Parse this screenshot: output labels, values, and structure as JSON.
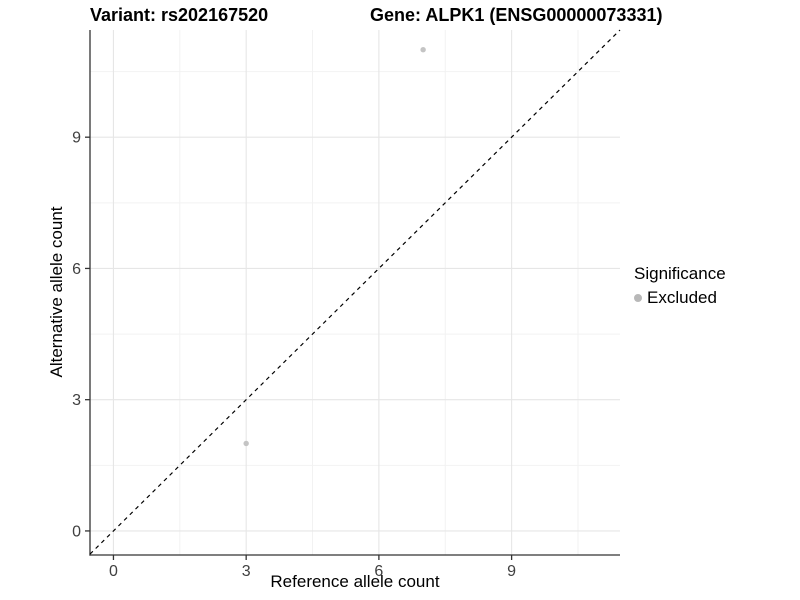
{
  "chart_data": {
    "type": "scatter",
    "title_left": "Variant: rs202167520",
    "title_right": "Gene: ALPK1 (ENSG00000073331)",
    "xlabel": "Reference allele count",
    "ylabel": "Alternative allele count",
    "x_ticks": [
      0,
      3,
      6,
      9
    ],
    "y_ticks": [
      0,
      3,
      6,
      9
    ],
    "minor_ticks": [
      1.5,
      4.5,
      7.5,
      10.5
    ],
    "xlim": [
      -0.53,
      11.45
    ],
    "ylim": [
      -0.55,
      11.45
    ],
    "grid": true,
    "identity_line": {
      "slope": 1,
      "intercept": 0,
      "style": "dashed",
      "color": "#000000"
    },
    "series": [
      {
        "name": "Excluded",
        "color": "#c4c4c4",
        "point_radius": 2.7,
        "points": [
          [
            3,
            2
          ],
          [
            7,
            11
          ]
        ]
      }
    ],
    "legend": {
      "title": "Significance",
      "position": "right",
      "entries": [
        {
          "label": "Excluded",
          "color": "#b8b8b8"
        }
      ]
    }
  },
  "colors": {
    "grid_major": "#e6e6e6",
    "grid_minor": "#f2f2f2",
    "axis_line": "#333333",
    "tick_text": "#404040",
    "background": "#ffffff"
  }
}
